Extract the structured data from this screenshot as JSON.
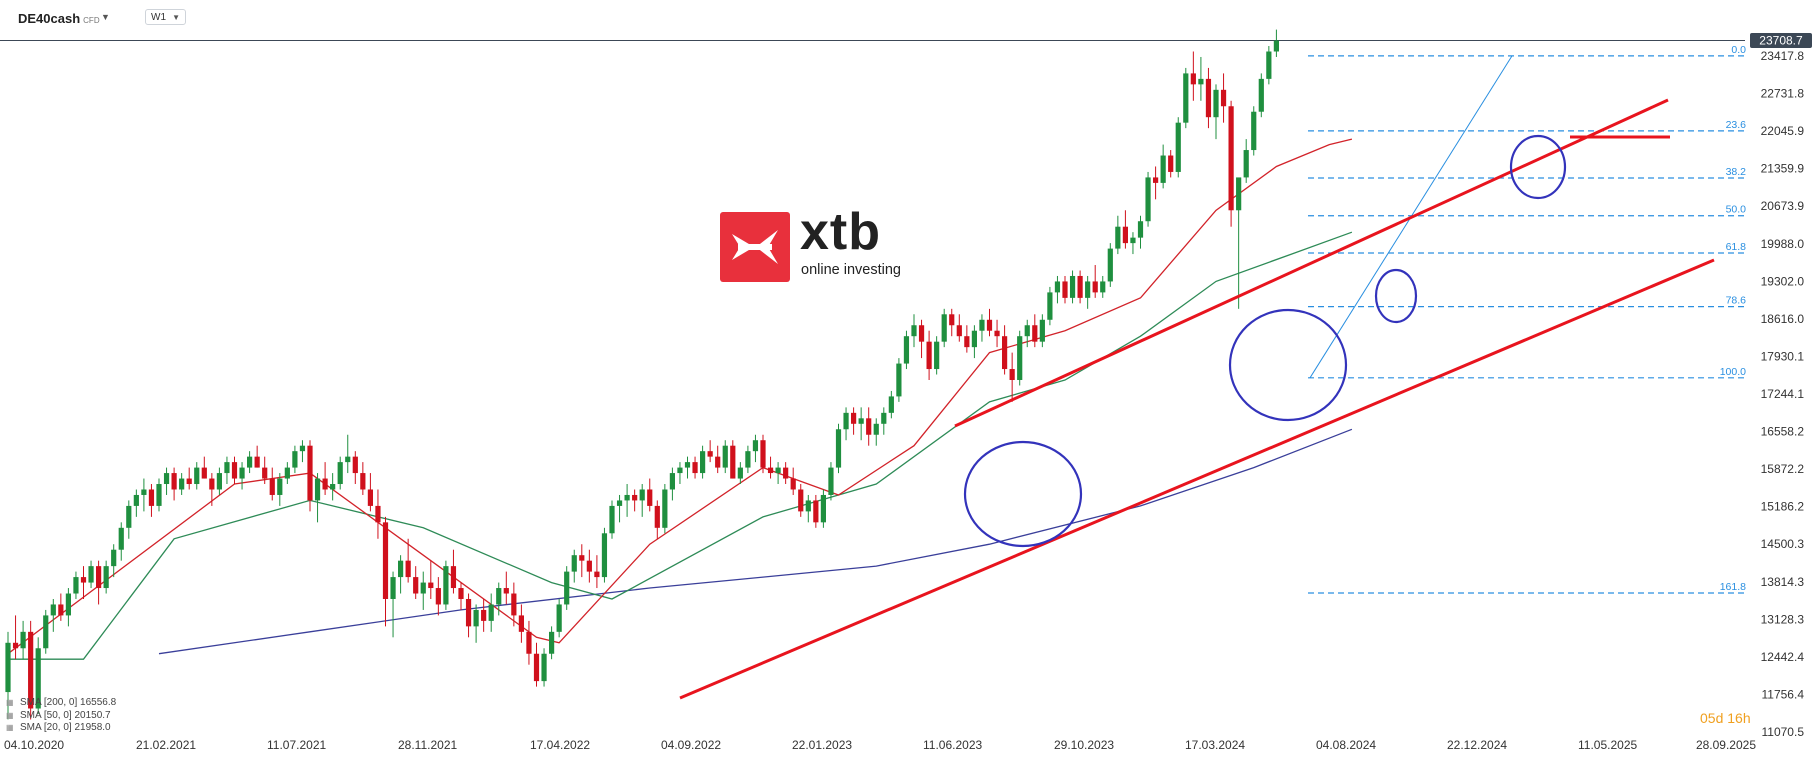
{
  "toolbar": {
    "symbol": "DE40cash",
    "symbol_type": "CFD",
    "interval": "W1"
  },
  "logo": {
    "word": "xtb",
    "tagline": "online investing"
  },
  "countdown": "05d 16h",
  "legend": [
    {
      "label": "SMA [200, 0] 16556.8",
      "color": "#3a3f9a"
    },
    {
      "label": "SMA [50, 0] 20150.7",
      "color": "#2e8b57"
    },
    {
      "label": "SMA [20, 0] 21958.0",
      "color": "#d2232a"
    }
  ],
  "colors": {
    "up": "#1f8f3f",
    "down": "#d0101c",
    "trend": "#e8141e",
    "circle": "#3333bb",
    "fib": "#2a8fe0",
    "current_price_label": "#3c4856"
  },
  "chart_data": {
    "type": "candlestick",
    "x_tick_labels": [
      "04.10.2020",
      "21.02.2021",
      "11.07.2021",
      "28.11.2021",
      "17.04.2022",
      "04.09.2022",
      "22.01.2023",
      "11.06.2023",
      "29.10.2023",
      "17.03.2024",
      "04.08.2024",
      "22.12.2024",
      "11.05.2025",
      "28.09.2025"
    ],
    "y_tick_labels": [
      23417.8,
      22731.8,
      22045.9,
      21359.9,
      20673.9,
      19988.0,
      19302.0,
      18616.0,
      17930.1,
      17244.1,
      16558.2,
      15872.2,
      15186.2,
      14500.3,
      13814.3,
      13128.3,
      12442.4,
      11756.4,
      11070.5
    ],
    "ylim": [
      11070.5,
      24100
    ],
    "current_price": "23708.7",
    "candles": [
      [
        11.8,
        12.9,
        11.3,
        12.7
      ],
      [
        12.7,
        13.2,
        12.4,
        12.6
      ],
      [
        12.6,
        13.1,
        12.4,
        12.9
      ],
      [
        12.9,
        13.1,
        11.3,
        11.5
      ],
      [
        11.5,
        12.8,
        11.4,
        12.6
      ],
      [
        12.6,
        13.3,
        12.5,
        13.2
      ],
      [
        13.2,
        13.5,
        12.9,
        13.4
      ],
      [
        13.4,
        13.6,
        13.1,
        13.2
      ],
      [
        13.2,
        13.7,
        13.0,
        13.6
      ],
      [
        13.6,
        14.0,
        13.5,
        13.9
      ],
      [
        13.9,
        14.1,
        13.5,
        13.8
      ],
      [
        13.8,
        14.2,
        13.7,
        14.1
      ],
      [
        14.1,
        14.2,
        13.4,
        13.7
      ],
      [
        13.7,
        14.2,
        13.6,
        14.1
      ],
      [
        14.1,
        14.5,
        13.9,
        14.4
      ],
      [
        14.4,
        14.9,
        14.2,
        14.8
      ],
      [
        14.8,
        15.3,
        14.6,
        15.2
      ],
      [
        15.2,
        15.5,
        15.0,
        15.4
      ],
      [
        15.4,
        15.7,
        15.1,
        15.5
      ],
      [
        15.5,
        15.6,
        15.0,
        15.2
      ],
      [
        15.2,
        15.7,
        15.1,
        15.6
      ],
      [
        15.6,
        15.9,
        15.4,
        15.8
      ],
      [
        15.8,
        15.9,
        15.3,
        15.5
      ],
      [
        15.5,
        15.8,
        15.4,
        15.7
      ],
      [
        15.7,
        15.9,
        15.5,
        15.6
      ],
      [
        15.6,
        16.0,
        15.5,
        15.9
      ],
      [
        15.9,
        16.1,
        15.7,
        15.7
      ],
      [
        15.7,
        15.8,
        15.2,
        15.5
      ],
      [
        15.5,
        15.9,
        15.4,
        15.8
      ],
      [
        15.8,
        16.1,
        15.6,
        16.0
      ],
      [
        16.0,
        16.1,
        15.6,
        15.7
      ],
      [
        15.7,
        16.0,
        15.5,
        15.9
      ],
      [
        15.9,
        16.2,
        15.8,
        16.1
      ],
      [
        16.1,
        16.3,
        15.9,
        15.9
      ],
      [
        15.9,
        16.1,
        15.6,
        15.7
      ],
      [
        15.7,
        15.9,
        15.3,
        15.4
      ],
      [
        15.4,
        15.8,
        15.2,
        15.7
      ],
      [
        15.7,
        16.0,
        15.6,
        15.9
      ],
      [
        15.9,
        16.3,
        15.8,
        16.2
      ],
      [
        16.2,
        16.4,
        16.0,
        16.3
      ],
      [
        16.3,
        16.4,
        15.1,
        15.3
      ],
      [
        15.3,
        15.8,
        14.9,
        15.7
      ],
      [
        15.7,
        16.0,
        15.4,
        15.5
      ],
      [
        15.5,
        15.8,
        15.3,
        15.6
      ],
      [
        15.6,
        16.1,
        15.5,
        16.0
      ],
      [
        16.0,
        16.5,
        15.8,
        16.1
      ],
      [
        16.1,
        16.2,
        15.6,
        15.8
      ],
      [
        15.8,
        16.0,
        15.4,
        15.5
      ],
      [
        15.5,
        15.8,
        15.1,
        15.2
      ],
      [
        15.2,
        15.5,
        14.6,
        14.9
      ],
      [
        14.9,
        15.0,
        13.0,
        13.5
      ],
      [
        13.5,
        14.0,
        12.8,
        13.9
      ],
      [
        13.9,
        14.3,
        13.6,
        14.2
      ],
      [
        14.2,
        14.6,
        13.8,
        13.9
      ],
      [
        13.9,
        14.1,
        13.5,
        13.6
      ],
      [
        13.6,
        14.0,
        13.3,
        13.8
      ],
      [
        13.8,
        14.2,
        13.5,
        13.7
      ],
      [
        13.7,
        13.9,
        13.2,
        13.4
      ],
      [
        13.4,
        14.2,
        13.3,
        14.1
      ],
      [
        14.1,
        14.4,
        13.6,
        13.7
      ],
      [
        13.7,
        13.8,
        13.3,
        13.5
      ],
      [
        13.5,
        13.6,
        12.8,
        13.0
      ],
      [
        13.0,
        13.4,
        12.7,
        13.3
      ],
      [
        13.3,
        13.5,
        12.9,
        13.1
      ],
      [
        13.1,
        13.6,
        12.9,
        13.4
      ],
      [
        13.4,
        13.8,
        13.2,
        13.7
      ],
      [
        13.7,
        14.0,
        13.4,
        13.6
      ],
      [
        13.6,
        13.8,
        13.0,
        13.2
      ],
      [
        13.2,
        13.4,
        12.7,
        12.9
      ],
      [
        12.9,
        13.1,
        12.3,
        12.5
      ],
      [
        12.5,
        12.7,
        11.9,
        12.0
      ],
      [
        12.0,
        12.6,
        11.9,
        12.5
      ],
      [
        12.5,
        13.0,
        12.4,
        12.9
      ],
      [
        12.9,
        13.5,
        12.8,
        13.4
      ],
      [
        13.4,
        14.1,
        13.3,
        14.0
      ],
      [
        14.0,
        14.4,
        13.8,
        14.3
      ],
      [
        14.3,
        14.5,
        13.9,
        14.2
      ],
      [
        14.2,
        14.4,
        13.8,
        14.0
      ],
      [
        14.0,
        14.3,
        13.7,
        13.9
      ],
      [
        13.9,
        14.8,
        13.8,
        14.7
      ],
      [
        14.7,
        15.3,
        14.6,
        15.2
      ],
      [
        15.2,
        15.4,
        14.9,
        15.3
      ],
      [
        15.3,
        15.6,
        15.0,
        15.4
      ],
      [
        15.4,
        15.5,
        15.1,
        15.3
      ],
      [
        15.3,
        15.6,
        15.0,
        15.5
      ],
      [
        15.5,
        15.7,
        15.1,
        15.2
      ],
      [
        15.2,
        15.3,
        14.6,
        14.8
      ],
      [
        14.8,
        15.6,
        14.7,
        15.5
      ],
      [
        15.5,
        15.9,
        15.3,
        15.8
      ],
      [
        15.8,
        16.0,
        15.6,
        15.9
      ],
      [
        15.9,
        16.1,
        15.7,
        16.0
      ],
      [
        16.0,
        16.1,
        15.7,
        15.8
      ],
      [
        15.8,
        16.3,
        15.7,
        16.2
      ],
      [
        16.2,
        16.4,
        16.0,
        16.1
      ],
      [
        16.1,
        16.3,
        15.8,
        15.9
      ],
      [
        15.9,
        16.4,
        15.8,
        16.3
      ],
      [
        16.3,
        16.4,
        15.7,
        15.7
      ],
      [
        15.7,
        16.0,
        15.6,
        15.9
      ],
      [
        15.9,
        16.3,
        15.8,
        16.2
      ],
      [
        16.2,
        16.5,
        16.0,
        16.4
      ],
      [
        16.4,
        16.5,
        15.8,
        15.9
      ],
      [
        15.9,
        16.1,
        15.7,
        15.8
      ],
      [
        15.8,
        16.0,
        15.6,
        15.9
      ],
      [
        15.9,
        16.0,
        15.6,
        15.7
      ],
      [
        15.7,
        15.9,
        15.4,
        15.5
      ],
      [
        15.5,
        15.6,
        15.0,
        15.1
      ],
      [
        15.1,
        15.4,
        14.9,
        15.3
      ],
      [
        15.3,
        15.4,
        14.8,
        14.9
      ],
      [
        14.9,
        15.5,
        14.8,
        15.4
      ],
      [
        15.4,
        16.0,
        15.3,
        15.9
      ],
      [
        15.9,
        16.7,
        15.8,
        16.6
      ],
      [
        16.6,
        17.0,
        16.4,
        16.9
      ],
      [
        16.9,
        17.0,
        16.5,
        16.7
      ],
      [
        16.7,
        17.0,
        16.4,
        16.8
      ],
      [
        16.8,
        17.0,
        16.3,
        16.5
      ],
      [
        16.5,
        16.8,
        16.3,
        16.7
      ],
      [
        16.7,
        17.0,
        16.5,
        16.9
      ],
      [
        16.9,
        17.3,
        16.8,
        17.2
      ],
      [
        17.2,
        17.9,
        17.1,
        17.8
      ],
      [
        17.8,
        18.4,
        17.7,
        18.3
      ],
      [
        18.3,
        18.7,
        18.1,
        18.5
      ],
      [
        18.5,
        18.6,
        17.9,
        18.2
      ],
      [
        18.2,
        18.4,
        17.5,
        17.7
      ],
      [
        17.7,
        18.3,
        17.6,
        18.2
      ],
      [
        18.2,
        18.8,
        18.1,
        18.7
      ],
      [
        18.7,
        18.8,
        18.3,
        18.5
      ],
      [
        18.5,
        18.7,
        18.2,
        18.3
      ],
      [
        18.3,
        18.5,
        18.0,
        18.1
      ],
      [
        18.1,
        18.5,
        17.9,
        18.4
      ],
      [
        18.4,
        18.7,
        18.2,
        18.6
      ],
      [
        18.6,
        18.8,
        18.3,
        18.4
      ],
      [
        18.4,
        18.6,
        18.1,
        18.3
      ],
      [
        18.3,
        18.5,
        17.6,
        17.7
      ],
      [
        17.7,
        18.0,
        17.1,
        17.5
      ],
      [
        17.5,
        18.4,
        17.4,
        18.3
      ],
      [
        18.3,
        18.6,
        18.1,
        18.5
      ],
      [
        18.5,
        18.7,
        18.1,
        18.2
      ],
      [
        18.2,
        18.7,
        18.1,
        18.6
      ],
      [
        18.6,
        19.2,
        18.5,
        19.1
      ],
      [
        19.1,
        19.4,
        18.9,
        19.3
      ],
      [
        19.3,
        19.4,
        18.9,
        19.0
      ],
      [
        19.0,
        19.5,
        18.9,
        19.4
      ],
      [
        19.4,
        19.5,
        18.9,
        19.0
      ],
      [
        19.0,
        19.4,
        18.8,
        19.3
      ],
      [
        19.3,
        19.6,
        19.0,
        19.1
      ],
      [
        19.1,
        19.4,
        19.0,
        19.3
      ],
      [
        19.3,
        20.0,
        19.2,
        19.9
      ],
      [
        19.9,
        20.5,
        19.8,
        20.3
      ],
      [
        20.3,
        20.6,
        19.9,
        20.0
      ],
      [
        20.0,
        20.2,
        19.8,
        20.1
      ],
      [
        20.1,
        20.5,
        19.9,
        20.4
      ],
      [
        20.4,
        21.3,
        20.3,
        21.2
      ],
      [
        21.2,
        21.4,
        20.8,
        21.1
      ],
      [
        21.1,
        21.8,
        21.0,
        21.6
      ],
      [
        21.6,
        21.7,
        21.2,
        21.3
      ],
      [
        21.3,
        22.3,
        21.2,
        22.2
      ],
      [
        22.2,
        23.2,
        22.1,
        23.1
      ],
      [
        23.1,
        23.5,
        22.6,
        22.9
      ],
      [
        22.9,
        23.4,
        22.6,
        23.0
      ],
      [
        23.0,
        23.2,
        22.1,
        22.3
      ],
      [
        22.3,
        22.9,
        21.9,
        22.8
      ],
      [
        22.8,
        23.1,
        22.2,
        22.5
      ],
      [
        22.5,
        22.6,
        20.3,
        20.6
      ],
      [
        20.6,
        21.0,
        18.8,
        21.2
      ],
      [
        21.2,
        21.9,
        21.1,
        21.7
      ],
      [
        21.7,
        22.5,
        21.6,
        22.4
      ],
      [
        22.4,
        23.1,
        22.3,
        23.0
      ],
      [
        23.0,
        23.6,
        22.9,
        23.5
      ],
      [
        23.5,
        23.9,
        23.4,
        23.7
      ]
    ],
    "sma20": [
      [
        0,
        12.5
      ],
      [
        30,
        15.6
      ],
      [
        40,
        15.8
      ],
      [
        55,
        14.3
      ],
      [
        70,
        12.8
      ],
      [
        73,
        12.7
      ],
      [
        85,
        14.5
      ],
      [
        100,
        15.9
      ],
      [
        110,
        15.4
      ],
      [
        120,
        16.3
      ],
      [
        130,
        18.0
      ],
      [
        140,
        18.4
      ],
      [
        150,
        19.0
      ],
      [
        160,
        20.6
      ],
      [
        168,
        21.4
      ],
      [
        175,
        21.8
      ],
      [
        178,
        21.9
      ]
    ],
    "sma50": [
      [
        0,
        12.4
      ],
      [
        10,
        12.4
      ],
      [
        22,
        14.6
      ],
      [
        40,
        15.3
      ],
      [
        55,
        14.8
      ],
      [
        72,
        13.8
      ],
      [
        80,
        13.5
      ],
      [
        100,
        15.0
      ],
      [
        115,
        15.6
      ],
      [
        130,
        17.1
      ],
      [
        140,
        17.5
      ],
      [
        150,
        18.3
      ],
      [
        160,
        19.3
      ],
      [
        170,
        19.8
      ],
      [
        178,
        20.2
      ]
    ],
    "sma200": [
      [
        20,
        12.5
      ],
      [
        40,
        12.9
      ],
      [
        60,
        13.3
      ],
      [
        85,
        13.7
      ],
      [
        100,
        13.9
      ],
      [
        115,
        14.1
      ],
      [
        130,
        14.5
      ],
      [
        150,
        15.2
      ],
      [
        165,
        15.9
      ],
      [
        178,
        16.6
      ]
    ],
    "fib_levels": [
      {
        "label": "0.0",
        "price": 23.42
      },
      {
        "label": "23.6",
        "price": 22.05
      },
      {
        "label": "38.2",
        "price": 21.19
      },
      {
        "label": "50.0",
        "price": 20.5
      },
      {
        "label": "61.8",
        "price": 19.82
      },
      {
        "label": "78.6",
        "price": 18.84
      },
      {
        "label": "100.0",
        "price": 17.54
      },
      {
        "label": "161.8",
        "price": 13.61
      }
    ]
  }
}
